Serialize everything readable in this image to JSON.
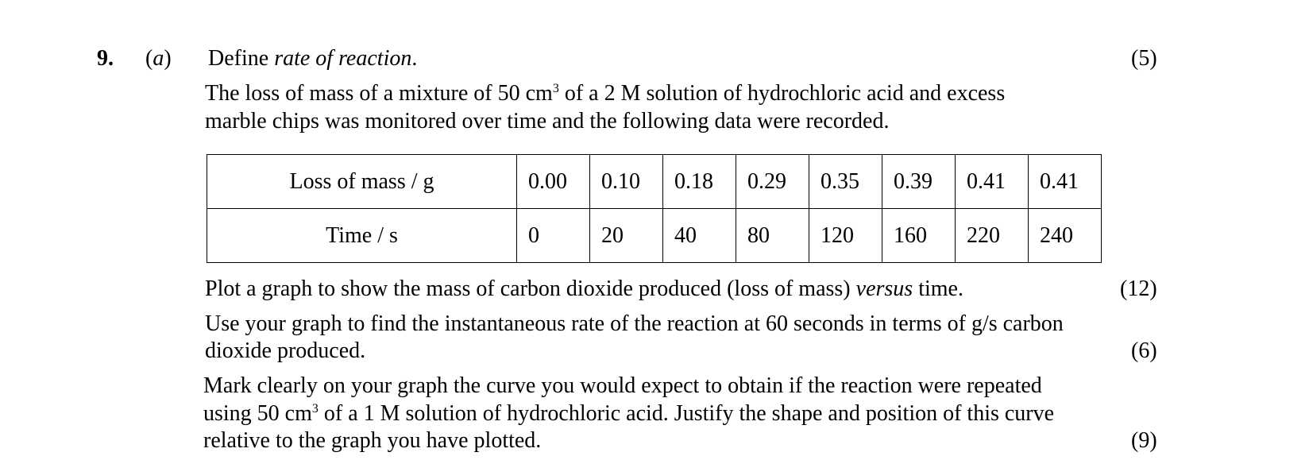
{
  "question": {
    "number": "9.",
    "part": "(a)",
    "part_a_prefix": "Define ",
    "part_a_term": "rate of reaction",
    "part_a_suffix": ".",
    "part_a_marks": "(5)",
    "intro_line1_pre": "The loss of mass of a mixture of 50 cm",
    "intro_line1_sup": "3",
    "intro_line1_post": " of a 2 M solution of hydrochloric acid and excess",
    "intro_line2": "marble chips was monitored over time and the following data were recorded."
  },
  "table": {
    "rows": [
      {
        "header": "Loss of mass / g",
        "values": [
          "0.00",
          "0.10",
          "0.18",
          "0.29",
          "0.35",
          "0.39",
          "0.41",
          "0.41"
        ]
      },
      {
        "header": "Time / s",
        "values": [
          "0",
          "20",
          "40",
          "80",
          "120",
          "160",
          "220",
          "240"
        ]
      }
    ]
  },
  "parts": {
    "plot_pre": "Plot a graph to show the mass of carbon dioxide produced (loss of mass) ",
    "plot_italic": "versus",
    "plot_post": " time.",
    "plot_marks": "(12)",
    "rate_line1": "Use your graph to find the instantaneous rate of the reaction at 60 seconds in terms of g/s carbon",
    "rate_line2": "dioxide produced.",
    "rate_marks": "(6)",
    "mark_line1": "Mark clearly on your graph the curve you would expect to obtain if the reaction were repeated",
    "mark_line2_pre": "using 50 cm",
    "mark_line2_sup": "3",
    "mark_line2_post": " of a 1 M solution of hydrochloric acid.  Justify the shape and position of this curve",
    "mark_line3": "relative to the graph you have plotted.",
    "mark_marks": "(9)"
  }
}
